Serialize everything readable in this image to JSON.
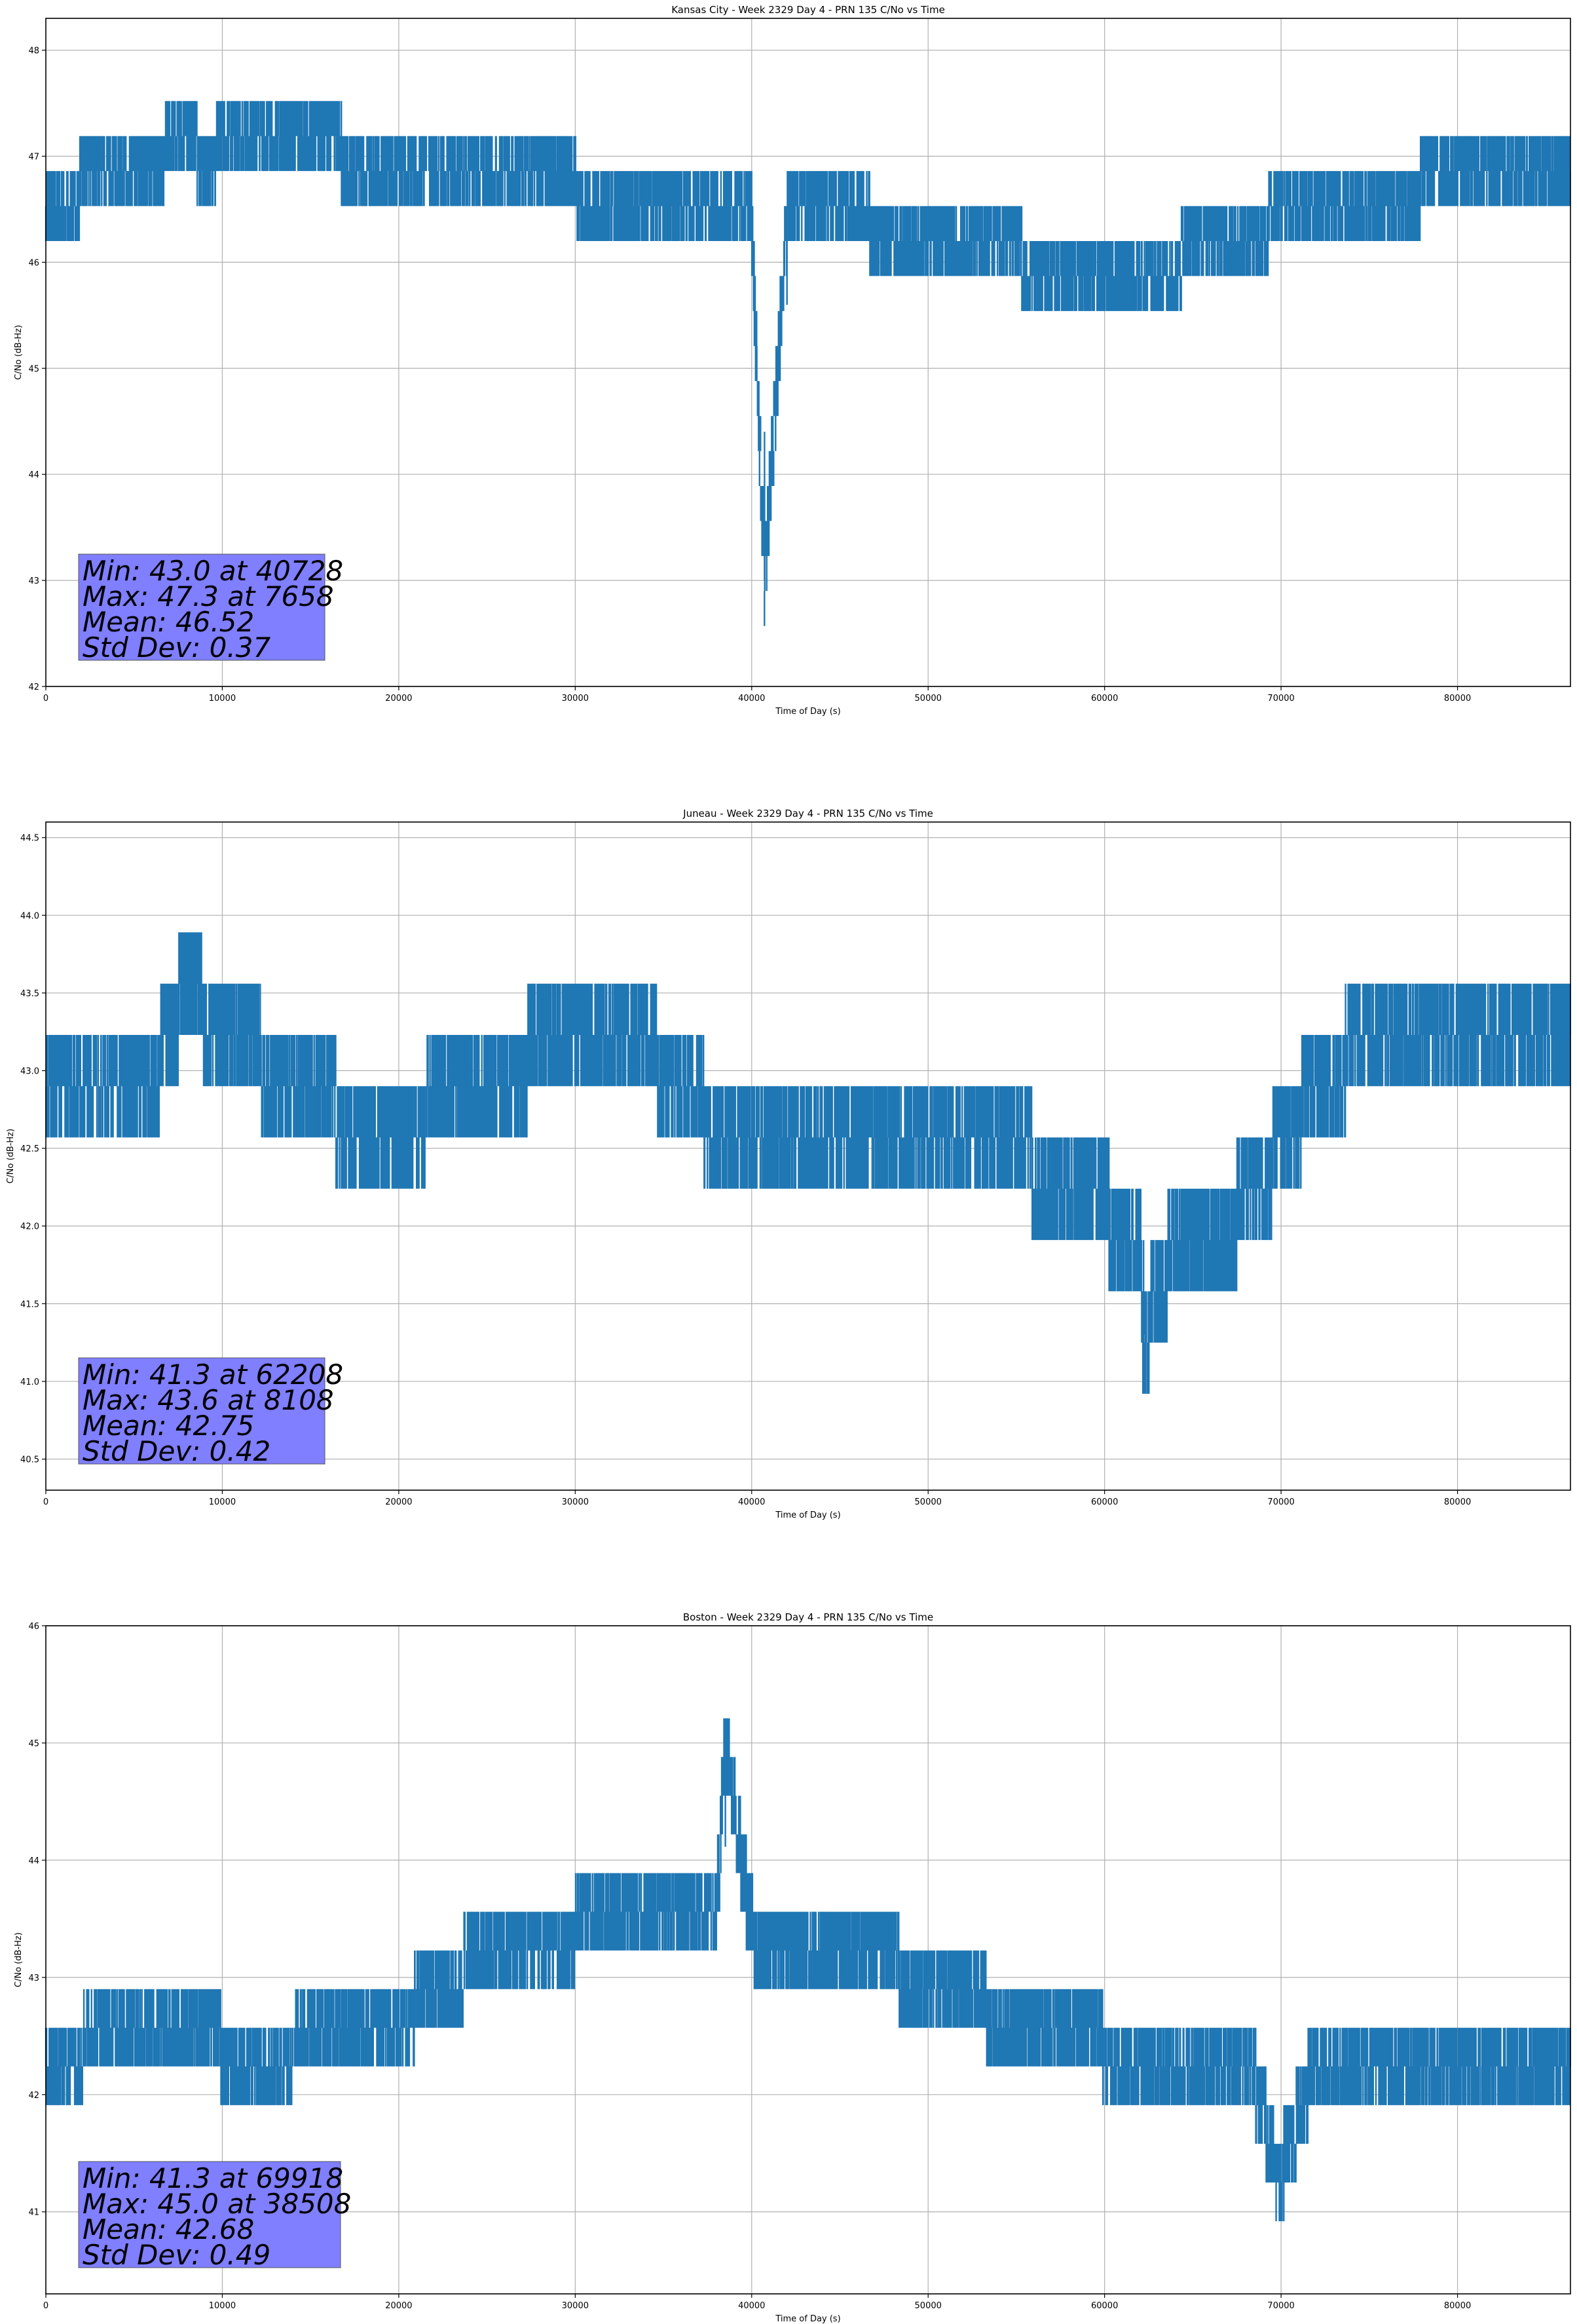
{
  "chart_data": [
    {
      "type": "line",
      "title": "Kansas City - Week 2329 Day 4 - PRN 135 C/No vs Time",
      "xlabel": "Time of Day (s)",
      "ylabel": "C/No (dB-Hz)",
      "xlim": [
        0,
        86400
      ],
      "ylim": [
        42,
        48.3
      ],
      "xticks": [
        0,
        10000,
        20000,
        30000,
        40000,
        50000,
        60000,
        70000,
        80000
      ],
      "yticks": [
        42,
        43,
        44,
        45,
        46,
        47,
        48
      ],
      "ytick_labels": [
        "42",
        "43",
        "44",
        "45",
        "46",
        "47",
        "48"
      ],
      "grid": true,
      "series_color": "#1f77b4",
      "series": [
        {
          "name": "C/No",
          "x": [
            0,
            2000,
            4000,
            6000,
            7658,
            9000,
            10000,
            12000,
            14000,
            16000,
            18000,
            20000,
            22000,
            24000,
            26000,
            28000,
            30000,
            32000,
            34000,
            36000,
            38000,
            40000,
            40728,
            42000,
            44000,
            46000,
            48000,
            50000,
            52000,
            54000,
            56000,
            58000,
            60000,
            62000,
            64000,
            66000,
            68000,
            70000,
            72000,
            74000,
            76000,
            78000,
            80000,
            82000,
            84000,
            86400
          ],
          "y": [
            46.6,
            46.7,
            46.8,
            46.8,
            47.3,
            46.9,
            47.1,
            47.2,
            47.2,
            47.1,
            46.9,
            46.8,
            46.8,
            46.8,
            46.8,
            46.8,
            46.7,
            46.5,
            46.5,
            46.5,
            46.4,
            46.4,
            43.0,
            46.4,
            46.4,
            46.4,
            46.3,
            46.2,
            46.2,
            46.1,
            46.0,
            45.9,
            45.8,
            45.8,
            46.0,
            46.2,
            46.3,
            46.4,
            46.5,
            46.6,
            46.6,
            46.7,
            46.7,
            46.7,
            46.7,
            46.7
          ]
        }
      ],
      "stats": {
        "min": "Min: 43.0 at 40728",
        "max": "Max: 47.3 at 7658",
        "mean": "Mean: 46.52",
        "std": "Std Dev: 0.37"
      },
      "stats_box_color": "#7f7fff"
    },
    {
      "type": "line",
      "title": "Juneau - Week 2329 Day 4 - PRN 135 C/No vs Time",
      "xlabel": "Time of Day (s)",
      "ylabel": "C/No (dB-Hz)",
      "xlim": [
        0,
        86400
      ],
      "ylim": [
        40.3,
        44.6
      ],
      "xticks": [
        0,
        10000,
        20000,
        30000,
        40000,
        50000,
        60000,
        70000,
        80000
      ],
      "yticks": [
        40.5,
        41.0,
        41.5,
        42.0,
        42.5,
        43.0,
        43.5,
        44.0,
        44.5
      ],
      "ytick_labels": [
        "40.5",
        "41.0",
        "41.5",
        "42.0",
        "42.5",
        "43.0",
        "43.5",
        "44.0",
        "44.5"
      ],
      "grid": true,
      "series_color": "#1f77b4",
      "series": [
        {
          "name": "C/No",
          "x": [
            0,
            2000,
            4000,
            6000,
            8108,
            10000,
            12000,
            14000,
            16000,
            18000,
            20000,
            22000,
            24000,
            26000,
            28000,
            30000,
            32000,
            34000,
            36000,
            38000,
            40000,
            42000,
            44000,
            46000,
            48000,
            50000,
            52000,
            54000,
            56000,
            58000,
            60000,
            62000,
            62208,
            64000,
            66000,
            68000,
            70000,
            72000,
            74000,
            76000,
            78000,
            80000,
            82000,
            84000,
            86400
          ],
          "y": [
            43.0,
            42.8,
            42.8,
            42.9,
            43.6,
            43.1,
            43.1,
            42.8,
            42.8,
            42.5,
            42.5,
            42.8,
            42.8,
            43.0,
            43.1,
            43.1,
            43.2,
            43.2,
            42.8,
            42.7,
            42.6,
            42.5,
            42.5,
            42.6,
            42.6,
            42.6,
            42.6,
            42.5,
            42.4,
            42.3,
            42.1,
            41.9,
            41.3,
            41.9,
            42.0,
            42.1,
            42.5,
            42.9,
            43.1,
            43.2,
            43.2,
            43.2,
            43.3,
            43.2,
            43.1
          ]
        }
      ],
      "stats": {
        "min": "Min: 41.3 at 62208",
        "max": "Max: 43.6 at 8108",
        "mean": "Mean: 42.75",
        "std": "Std Dev: 0.42"
      },
      "stats_box_color": "#7f7fff"
    },
    {
      "type": "line",
      "title": "Boston - Week 2329 Day 4 - PRN 135 C/No vs Time",
      "xlabel": "Time of Day (s)",
      "ylabel": "C/No (dB-Hz)",
      "xlim": [
        0,
        86400
      ],
      "ylim": [
        40.3,
        46
      ],
      "xticks": [
        0,
        10000,
        20000,
        30000,
        40000,
        50000,
        60000,
        70000,
        80000
      ],
      "yticks": [
        41,
        42,
        43,
        44,
        45,
        46
      ],
      "ytick_labels": [
        "41",
        "42",
        "43",
        "44",
        "45",
        "46"
      ],
      "grid": true,
      "series_color": "#1f77b4",
      "series": [
        {
          "name": "C/No",
          "x": [
            0,
            2000,
            4000,
            6000,
            8000,
            10000,
            12000,
            14000,
            16000,
            18000,
            20000,
            22000,
            24000,
            26000,
            28000,
            30000,
            32000,
            34000,
            36000,
            38000,
            38508,
            40000,
            42000,
            44000,
            46000,
            48000,
            50000,
            52000,
            54000,
            56000,
            58000,
            60000,
            62000,
            64000,
            66000,
            68000,
            69918,
            72000,
            74000,
            76000,
            78000,
            80000,
            82000,
            84000,
            86400
          ],
          "y": [
            42.3,
            42.4,
            42.5,
            42.6,
            42.5,
            42.4,
            42.4,
            42.4,
            42.5,
            42.5,
            42.6,
            42.9,
            43.1,
            43.1,
            43.2,
            43.4,
            43.4,
            43.5,
            43.5,
            43.5,
            45.0,
            43.4,
            43.3,
            43.3,
            43.2,
            43.1,
            42.9,
            42.8,
            42.7,
            42.5,
            42.5,
            42.4,
            42.4,
            42.4,
            42.4,
            42.4,
            41.3,
            42.3,
            42.2,
            42.2,
            42.2,
            42.2,
            42.1,
            42.1,
            42.2
          ]
        }
      ],
      "stats": {
        "min": "Min: 41.3 at 69918",
        "max": "Max: 45.0 at 38508",
        "mean": "Mean: 42.68",
        "std": "Std Dev: 0.49"
      },
      "stats_box_color": "#7f7fff"
    }
  ]
}
